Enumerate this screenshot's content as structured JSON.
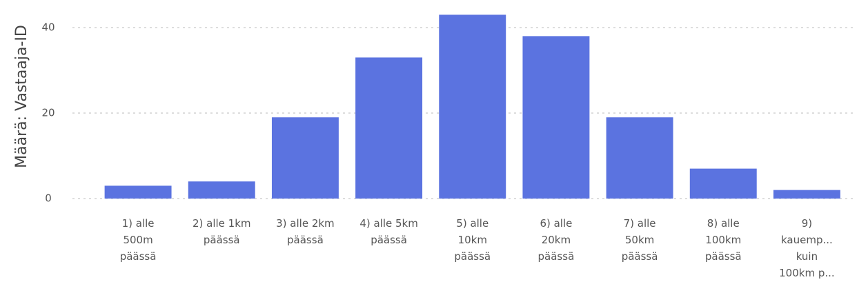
{
  "chart_data": {
    "type": "bar",
    "y_label": "Määrä: Vastaaja-ID",
    "categories": [
      "1) alle\n500m\npäässä",
      "2) alle 1km\npäässä",
      "3) alle 2km\npäässä",
      "4) alle 5km\npäässä",
      "5) alle\n10km\npäässä",
      "6) alle\n20km\npäässä",
      "7) alle\n50km\npäässä",
      "8) alle\n100km\npäässä",
      "9)\nkauemp...\nkuin\n100km p..."
    ],
    "values": [
      3,
      4,
      19,
      33,
      43,
      38,
      19,
      7,
      2
    ],
    "color": "#5b73e0",
    "ylim": [
      0,
      45
    ],
    "yticks": [
      0,
      20,
      40
    ],
    "grid": true
  }
}
